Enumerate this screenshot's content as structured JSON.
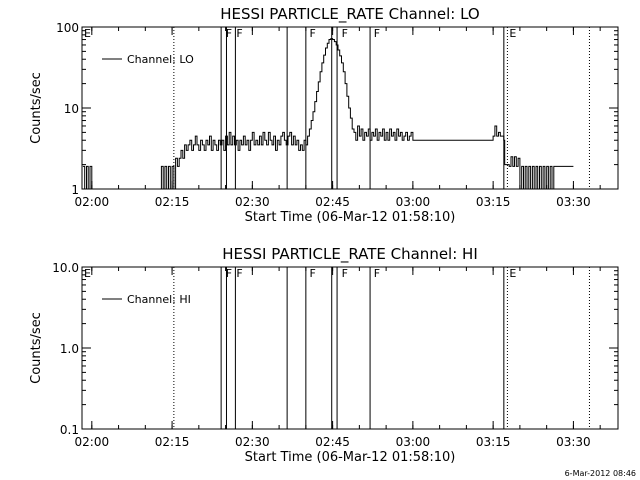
{
  "footer_timestamp": "6-Mar-2012 08:46",
  "chart_data": [
    {
      "type": "line",
      "title": "HESSI PARTICLE_RATE Channel: LO",
      "xlabel": "Start Time (06-Mar-12 01:58:10)",
      "ylabel": "Counts/sec",
      "yscale": "log",
      "ylim": [
        1,
        100
      ],
      "xlim": [
        "01:58:10",
        "03:38:20"
      ],
      "ytick_labels": [
        "1",
        "10",
        "100"
      ],
      "xtick_labels": [
        "02:00",
        "02:15",
        "02:30",
        "02:45",
        "03:00",
        "03:15",
        "03:30"
      ],
      "legend": {
        "position": "top-left",
        "label": "Channel: LO"
      },
      "flags": [
        {
          "time": "02:24:50",
          "label": "F"
        },
        {
          "time": "02:26:50",
          "label": "F"
        },
        {
          "time": "02:40:30",
          "label": "F"
        },
        {
          "time": "02:46:30",
          "label": "F"
        },
        {
          "time": "02:52:30",
          "label": "F"
        }
      ],
      "eclipse_marks": [
        {
          "time": "01:58:10",
          "label": "E"
        },
        {
          "time": "03:17:40",
          "label": "E"
        }
      ],
      "solid_lines": [
        "02:24:10",
        "02:25:10",
        "02:26:50",
        "02:36:30",
        "02:40:00",
        "02:44:50",
        "02:45:50",
        "02:52:00",
        "03:17:00"
      ],
      "dotted_lines": [
        "02:15:20",
        "03:17:40",
        "03:33:00"
      ],
      "series": [
        {
          "name": "Channel: LO",
          "points": [
            [
              "01:58:20",
              1.9
            ],
            [
              "01:58:40",
              1.0
            ],
            [
              "01:59:00",
              1.9
            ],
            [
              "01:59:20",
              1.0
            ],
            [
              "01:59:40",
              1.9
            ],
            [
              "02:00:00",
              1.0
            ],
            [
              "02:00:20",
              1.0
            ],
            [
              "02:01:00",
              1.0
            ],
            [
              "02:04:00",
              1.0
            ],
            [
              "02:08:00",
              1.0
            ],
            [
              "02:12:00",
              1.0
            ],
            [
              "02:12:40",
              1.0
            ],
            [
              "02:13:00",
              1.9
            ],
            [
              "02:13:20",
              1.0
            ],
            [
              "02:13:40",
              1.9
            ],
            [
              "02:14:00",
              1.0
            ],
            [
              "02:14:20",
              1.9
            ],
            [
              "02:14:40",
              1.0
            ],
            [
              "02:15:00",
              1.9
            ],
            [
              "02:15:20",
              1.0
            ],
            [
              "02:15:40",
              2.4
            ],
            [
              "02:16:00",
              1.9
            ],
            [
              "02:16:20",
              2.4
            ],
            [
              "02:16:40",
              3.0
            ],
            [
              "02:17:00",
              2.4
            ],
            [
              "02:17:20",
              3.5
            ],
            [
              "02:17:40",
              3.0
            ],
            [
              "02:18:00",
              3.5
            ],
            [
              "02:18:20",
              4.0
            ],
            [
              "02:18:40",
              3.0
            ],
            [
              "02:19:00",
              3.5
            ],
            [
              "02:19:20",
              4.5
            ],
            [
              "02:19:40",
              3.5
            ],
            [
              "02:20:00",
              3.0
            ],
            [
              "02:20:20",
              4.0
            ],
            [
              "02:20:40",
              3.5
            ],
            [
              "02:21:00",
              3.0
            ],
            [
              "02:21:20",
              4.0
            ],
            [
              "02:21:40",
              3.5
            ],
            [
              "02:22:00",
              4.5
            ],
            [
              "02:22:20",
              3.0
            ],
            [
              "02:22:40",
              4.0
            ],
            [
              "02:23:00",
              3.5
            ],
            [
              "02:23:20",
              3.0
            ],
            [
              "02:23:40",
              4.0
            ],
            [
              "02:24:00",
              3.5
            ],
            [
              "02:24:20",
              4.0
            ],
            [
              "02:24:40",
              3.0
            ],
            [
              "02:25:00",
              4.5
            ],
            [
              "02:25:20",
              3.5
            ],
            [
              "02:25:40",
              5.0
            ],
            [
              "02:26:00",
              3.5
            ],
            [
              "02:26:20",
              4.5
            ],
            [
              "02:26:40",
              3.5
            ],
            [
              "02:27:00",
              4.0
            ],
            [
              "02:27:20",
              3.0
            ],
            [
              "02:27:40",
              4.0
            ],
            [
              "02:28:00",
              3.5
            ],
            [
              "02:28:20",
              4.5
            ],
            [
              "02:28:40",
              3.5
            ],
            [
              "02:29:00",
              4.0
            ],
            [
              "02:29:20",
              3.0
            ],
            [
              "02:29:40",
              4.0
            ],
            [
              "02:30:00",
              5.0
            ],
            [
              "02:30:20",
              3.5
            ],
            [
              "02:30:40",
              4.0
            ],
            [
              "02:31:00",
              3.5
            ],
            [
              "02:31:20",
              4.5
            ],
            [
              "02:31:40",
              3.5
            ],
            [
              "02:32:00",
              5.0
            ],
            [
              "02:32:20",
              4.0
            ],
            [
              "02:32:40",
              3.5
            ],
            [
              "02:33:00",
              5.0
            ],
            [
              "02:33:20",
              4.0
            ],
            [
              "02:33:40",
              3.5
            ],
            [
              "02:34:00",
              4.5
            ],
            [
              "02:34:20",
              3.0
            ],
            [
              "02:34:40",
              4.0
            ],
            [
              "02:35:00",
              3.5
            ],
            [
              "02:35:20",
              4.5
            ],
            [
              "02:35:40",
              5.0
            ],
            [
              "02:36:00",
              4.0
            ],
            [
              "02:36:20",
              3.5
            ],
            [
              "02:36:40",
              4.5
            ],
            [
              "02:37:00",
              5.0
            ],
            [
              "02:37:20",
              3.5
            ],
            [
              "02:37:40",
              4.5
            ],
            [
              "02:38:00",
              3.5
            ],
            [
              "02:38:20",
              4.0
            ],
            [
              "02:38:40",
              3.0
            ],
            [
              "02:39:00",
              3.5
            ],
            [
              "02:39:20",
              3.0
            ],
            [
              "02:39:40",
              4.0
            ],
            [
              "02:40:00",
              3.5
            ],
            [
              "02:40:20",
              4.5
            ],
            [
              "02:40:40",
              5.5
            ],
            [
              "02:41:00",
              7.0
            ],
            [
              "02:41:20",
              9.0
            ],
            [
              "02:41:40",
              12.0
            ],
            [
              "02:42:00",
              16.0
            ],
            [
              "02:42:20",
              21.0
            ],
            [
              "02:42:40",
              28.0
            ],
            [
              "02:43:00",
              36.0
            ],
            [
              "02:43:20",
              45.0
            ],
            [
              "02:43:40",
              55.0
            ],
            [
              "02:44:00",
              63.0
            ],
            [
              "02:44:20",
              70.0
            ],
            [
              "02:44:40",
              72.0
            ],
            [
              "02:45:00",
              70.0
            ],
            [
              "02:45:20",
              66.0
            ],
            [
              "02:45:40",
              60.0
            ],
            [
              "02:46:00",
              52.0
            ],
            [
              "02:46:20",
              44.0
            ],
            [
              "02:46:40",
              36.0
            ],
            [
              "02:47:00",
              28.0
            ],
            [
              "02:47:20",
              20.0
            ],
            [
              "02:47:40",
              14.0
            ],
            [
              "02:48:00",
              10.0
            ],
            [
              "02:48:20",
              7.5
            ],
            [
              "02:48:40",
              5.5
            ],
            [
              "02:49:00",
              5.0
            ],
            [
              "02:49:20",
              4.0
            ],
            [
              "02:49:40",
              6.0
            ],
            [
              "02:50:00",
              4.5
            ],
            [
              "02:50:20",
              5.5
            ],
            [
              "02:50:40",
              4.0
            ],
            [
              "02:51:00",
              5.0
            ],
            [
              "02:51:20",
              4.5
            ],
            [
              "02:51:40",
              5.5
            ],
            [
              "02:52:00",
              4.0
            ],
            [
              "02:52:20",
              5.0
            ],
            [
              "02:52:40",
              4.5
            ],
            [
              "02:53:00",
              5.5
            ],
            [
              "02:53:20",
              4.0
            ],
            [
              "02:53:40",
              5.0
            ],
            [
              "02:54:00",
              4.5
            ],
            [
              "02:54:20",
              5.5
            ],
            [
              "02:54:40",
              4.0
            ],
            [
              "02:55:00",
              5.0
            ],
            [
              "02:55:20",
              4.0
            ],
            [
              "02:55:40",
              5.5
            ],
            [
              "02:56:00",
              4.5
            ],
            [
              "02:56:20",
              5.0
            ],
            [
              "02:56:40",
              4.0
            ],
            [
              "02:57:00",
              5.5
            ],
            [
              "02:57:20",
              4.5
            ],
            [
              "02:57:40",
              5.0
            ],
            [
              "02:58:00",
              4.0
            ],
            [
              "02:58:20",
              4.5
            ],
            [
              "02:58:40",
              5.0
            ],
            [
              "02:59:00",
              4.0
            ],
            [
              "02:59:20",
              4.5
            ],
            [
              "02:59:40",
              5.0
            ],
            [
              "03:00:00",
              4.0
            ],
            [
              "03:00:40",
              4.0
            ],
            [
              "03:02:00",
              4.0
            ],
            [
              "03:04:00",
              4.0
            ],
            [
              "03:06:00",
              4.0
            ],
            [
              "03:08:00",
              4.0
            ],
            [
              "03:10:00",
              4.0
            ],
            [
              "03:12:00",
              4.0
            ],
            [
              "03:14:00",
              4.0
            ],
            [
              "03:15:00",
              4.5
            ],
            [
              "03:15:20",
              6.0
            ],
            [
              "03:15:40",
              4.5
            ],
            [
              "03:16:00",
              5.0
            ],
            [
              "03:16:20",
              4.5
            ],
            [
              "03:17:00",
              4.0
            ],
            [
              "03:17:10",
              2.0
            ],
            [
              "03:18:00",
              1.9
            ],
            [
              "03:18:20",
              2.5
            ],
            [
              "03:18:40",
              1.9
            ],
            [
              "03:19:00",
              2.5
            ],
            [
              "03:19:20",
              1.9
            ],
            [
              "03:19:40",
              2.4
            ],
            [
              "03:20:00",
              1.0
            ],
            [
              "03:20:20",
              1.9
            ],
            [
              "03:20:40",
              1.0
            ],
            [
              "03:21:00",
              1.9
            ],
            [
              "03:21:20",
              1.0
            ],
            [
              "03:21:40",
              1.9
            ],
            [
              "03:22:00",
              1.0
            ],
            [
              "03:22:20",
              1.9
            ],
            [
              "03:22:40",
              1.0
            ],
            [
              "03:23:00",
              1.9
            ],
            [
              "03:23:20",
              1.0
            ],
            [
              "03:23:40",
              1.9
            ],
            [
              "03:24:00",
              1.0
            ],
            [
              "03:24:20",
              1.9
            ],
            [
              "03:24:40",
              1.0
            ],
            [
              "03:25:00",
              1.9
            ],
            [
              "03:25:20",
              1.0
            ],
            [
              "03:25:40",
              1.9
            ],
            [
              "03:26:00",
              1.0
            ],
            [
              "03:26:20",
              1.9
            ],
            [
              "03:26:40",
              1.9
            ],
            [
              "03:28:00",
              1.9
            ],
            [
              "03:30:00",
              1.9
            ]
          ]
        }
      ]
    },
    {
      "type": "line",
      "title": "HESSI PARTICLE_RATE Channel: HI",
      "xlabel": "Start Time (06-Mar-12 01:58:10)",
      "ylabel": "Counts/sec",
      "yscale": "log",
      "ylim": [
        0.1,
        10
      ],
      "xlim": [
        "01:58:10",
        "03:38:20"
      ],
      "ytick_labels": [
        "0.1",
        "1.0",
        "10.0"
      ],
      "xtick_labels": [
        "02:00",
        "02:15",
        "02:30",
        "02:45",
        "03:00",
        "03:15",
        "03:30"
      ],
      "legend": {
        "position": "top-left",
        "label": "Channel: HI"
      },
      "flags": [
        {
          "time": "02:24:50",
          "label": "F"
        },
        {
          "time": "02:26:50",
          "label": "F"
        },
        {
          "time": "02:40:30",
          "label": "F"
        },
        {
          "time": "02:46:30",
          "label": "F"
        },
        {
          "time": "02:52:30",
          "label": "F"
        }
      ],
      "eclipse_marks": [
        {
          "time": "01:58:10",
          "label": "E"
        },
        {
          "time": "03:17:40",
          "label": "E"
        }
      ],
      "solid_lines": [
        "02:24:10",
        "02:25:10",
        "02:26:50",
        "02:36:30",
        "02:40:00",
        "02:44:50",
        "02:45:50",
        "02:52:00",
        "03:17:00"
      ],
      "dotted_lines": [
        "02:15:20",
        "03:17:40",
        "03:33:00"
      ],
      "series": [
        {
          "name": "Channel: HI",
          "points": []
        }
      ]
    }
  ]
}
